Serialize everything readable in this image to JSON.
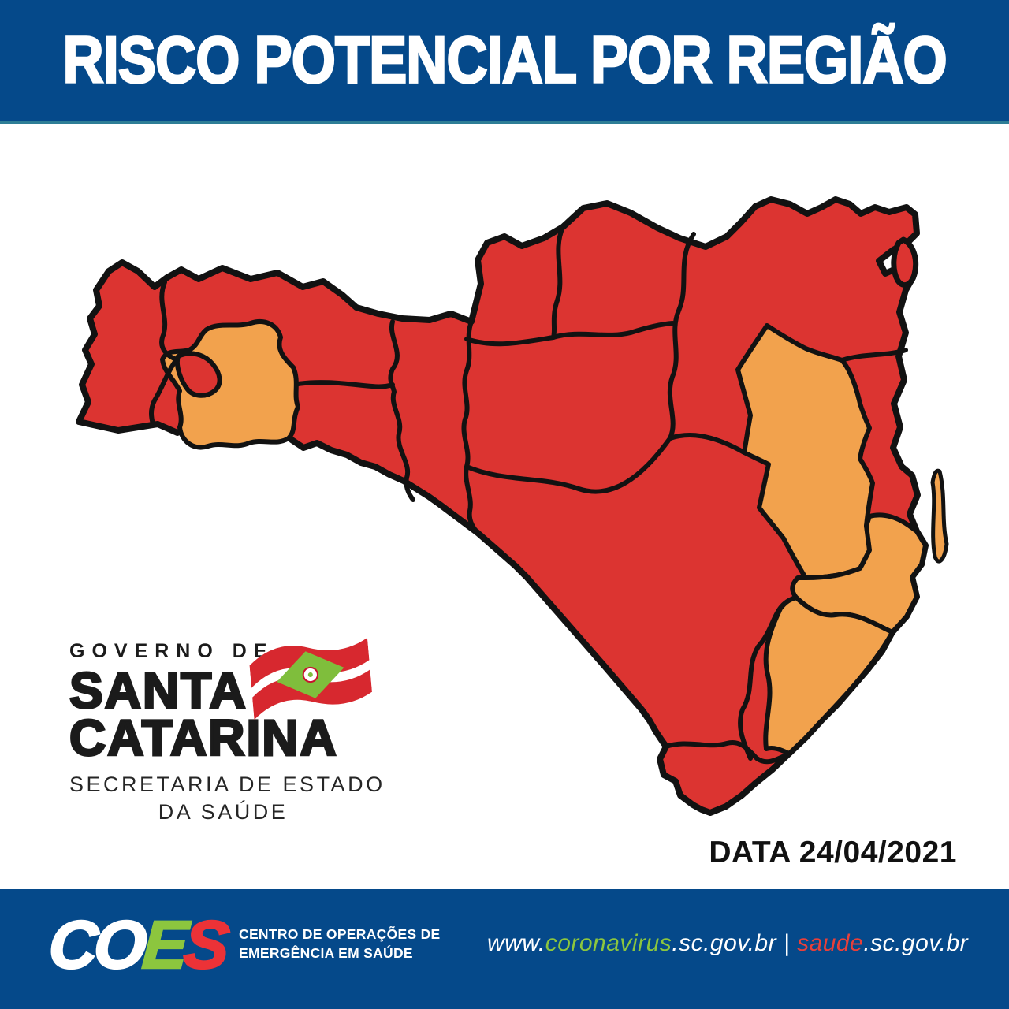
{
  "header": {
    "title": "RISCO POTENCIAL POR REGIÃO"
  },
  "colors": {
    "banner_blue": "#05498A",
    "risk_red": "#DC3431",
    "risk_orange": "#F2A24D",
    "outline_black": "#121212",
    "logo_green": "#8CC63E",
    "logo_red": "#EC3237",
    "url_red": "#E8403A",
    "white": "#FFFFFF"
  },
  "map": {
    "risk_colors": {
      "red": "#DC3431",
      "orange": "#F2A24D"
    },
    "regions": [
      {
        "id": "state-base",
        "risk": "red"
      },
      {
        "id": "west",
        "risk": "orange"
      },
      {
        "id": "west-lobe",
        "risk": "red"
      },
      {
        "id": "center-east",
        "risk": "orange"
      },
      {
        "id": "coast-upper",
        "risk": "orange"
      },
      {
        "id": "coast-lower",
        "risk": "orange"
      },
      {
        "id": "island-sliver",
        "risk": "orange"
      },
      {
        "id": "northeast-island",
        "risk": "red"
      }
    ]
  },
  "gov_logo": {
    "line1": "GOVERNO DE",
    "line2": "SANTA",
    "line3": "CATARINA",
    "line4": "SECRETARIA DE ESTADO",
    "line5": "DA SAÚDE"
  },
  "date_label": "DATA 24/04/2021",
  "footer": {
    "coes_letters": [
      {
        "char": "C",
        "color": "#FFFFFF"
      },
      {
        "char": "O",
        "color": "#FFFFFF"
      },
      {
        "char": "E",
        "color": "#8CC63E"
      },
      {
        "char": "S",
        "color": "#EC3237"
      }
    ],
    "org_line1": "CENTRO DE OPERAÇÕES DE",
    "org_line2": "EMERGÊNCIA EM SAÚDE",
    "url_segments": [
      {
        "text": "www.",
        "color": "#FFFFFF"
      },
      {
        "text": "coronavirus",
        "color": "#8CC63E"
      },
      {
        "text": ".sc.gov.br",
        "color": "#FFFFFF"
      },
      {
        "text": " | ",
        "color": "#FFFFFF"
      },
      {
        "text": "saude",
        "color": "#E8403A"
      },
      {
        "text": ".sc.gov.br",
        "color": "#FFFFFF"
      }
    ]
  }
}
